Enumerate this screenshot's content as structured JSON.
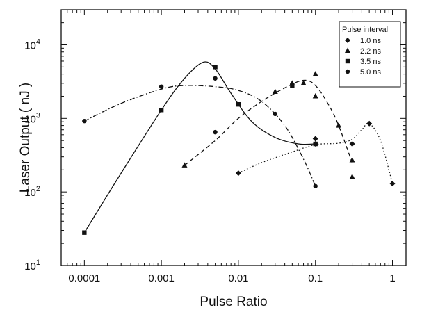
{
  "chart_data": {
    "type": "scatter",
    "title": "",
    "xlabel": "Pulse Ratio",
    "ylabel": "Laser Output ( nJ )",
    "xscale": "log",
    "yscale": "log",
    "xlim": [
      5e-05,
      1.5
    ],
    "ylim": [
      10,
      30000
    ],
    "x_ticks": [
      0.0001,
      0.001,
      0.01,
      0.1,
      1
    ],
    "x_tick_labels": [
      "0.0001",
      "0.001",
      "0.01",
      "0.1",
      "1"
    ],
    "y_ticks": [
      10,
      100,
      1000,
      10000
    ],
    "y_tick_labels": [
      {
        "base": "10",
        "exp": "1"
      },
      {
        "base": "10",
        "exp": "2"
      },
      {
        "base": "10",
        "exp": "3"
      },
      {
        "base": "10",
        "exp": "4"
      }
    ],
    "grid": false,
    "legend": {
      "title": "Pulse interval",
      "placement": "top-right"
    },
    "series": [
      {
        "name": "1.0 ns",
        "marker": "diamond",
        "line": "dotted",
        "points": [
          {
            "x": 0.01,
            "y": 180
          },
          {
            "x": 0.1,
            "y": 530
          },
          {
            "x": 0.1,
            "y": 450
          },
          {
            "x": 0.3,
            "y": 450
          },
          {
            "x": 0.5,
            "y": 850
          },
          {
            "x": 1.0,
            "y": 130
          }
        ],
        "curve": [
          {
            "x": 0.01,
            "y": 180
          },
          {
            "x": 0.02,
            "y": 250
          },
          {
            "x": 0.05,
            "y": 350
          },
          {
            "x": 0.1,
            "y": 440
          },
          {
            "x": 0.2,
            "y": 460
          },
          {
            "x": 0.3,
            "y": 520
          },
          {
            "x": 0.4,
            "y": 700
          },
          {
            "x": 0.5,
            "y": 850
          },
          {
            "x": 0.7,
            "y": 500
          },
          {
            "x": 1.0,
            "y": 130
          }
        ]
      },
      {
        "name": "2.2 ns",
        "marker": "triangle",
        "line": "dashed",
        "points": [
          {
            "x": 0.002,
            "y": 230
          },
          {
            "x": 0.03,
            "y": 2300
          },
          {
            "x": 0.05,
            "y": 3000
          },
          {
            "x": 0.07,
            "y": 3000
          },
          {
            "x": 0.1,
            "y": 4000
          },
          {
            "x": 0.1,
            "y": 2000
          },
          {
            "x": 0.2,
            "y": 800
          },
          {
            "x": 0.3,
            "y": 270
          },
          {
            "x": 0.3,
            "y": 160
          }
        ],
        "curve": [
          {
            "x": 0.002,
            "y": 230
          },
          {
            "x": 0.005,
            "y": 500
          },
          {
            "x": 0.01,
            "y": 1000
          },
          {
            "x": 0.02,
            "y": 1700
          },
          {
            "x": 0.04,
            "y": 2600
          },
          {
            "x": 0.07,
            "y": 3300
          },
          {
            "x": 0.1,
            "y": 2800
          },
          {
            "x": 0.15,
            "y": 1500
          },
          {
            "x": 0.2,
            "y": 800
          },
          {
            "x": 0.3,
            "y": 250
          }
        ]
      },
      {
        "name": "3.5 ns",
        "marker": "square",
        "line": "solid",
        "points": [
          {
            "x": 0.0001,
            "y": 28
          },
          {
            "x": 0.001,
            "y": 1300
          },
          {
            "x": 0.005,
            "y": 5000
          },
          {
            "x": 0.01,
            "y": 1550
          },
          {
            "x": 0.05,
            "y": 2800
          },
          {
            "x": 0.1,
            "y": 450
          }
        ],
        "curve": [
          {
            "x": 0.0001,
            "y": 28
          },
          {
            "x": 0.0003,
            "y": 180
          },
          {
            "x": 0.001,
            "y": 1300
          },
          {
            "x": 0.002,
            "y": 3500
          },
          {
            "x": 0.0035,
            "y": 5800
          },
          {
            "x": 0.005,
            "y": 4700
          },
          {
            "x": 0.008,
            "y": 2200
          },
          {
            "x": 0.015,
            "y": 900
          },
          {
            "x": 0.03,
            "y": 550
          },
          {
            "x": 0.06,
            "y": 450
          },
          {
            "x": 0.1,
            "y": 450
          }
        ]
      },
      {
        "name": "5.0 ns",
        "marker": "circle",
        "line": "dashdot",
        "points": [
          {
            "x": 0.0001,
            "y": 920
          },
          {
            "x": 0.001,
            "y": 2700
          },
          {
            "x": 0.005,
            "y": 3500
          },
          {
            "x": 0.005,
            "y": 650
          },
          {
            "x": 0.03,
            "y": 1150
          },
          {
            "x": 0.1,
            "y": 120
          }
        ],
        "curve": [
          {
            "x": 0.0001,
            "y": 920
          },
          {
            "x": 0.0003,
            "y": 1600
          },
          {
            "x": 0.001,
            "y": 2500
          },
          {
            "x": 0.002,
            "y": 2800
          },
          {
            "x": 0.005,
            "y": 2700
          },
          {
            "x": 0.01,
            "y": 2400
          },
          {
            "x": 0.02,
            "y": 1700
          },
          {
            "x": 0.04,
            "y": 800
          },
          {
            "x": 0.07,
            "y": 280
          },
          {
            "x": 0.1,
            "y": 120
          }
        ]
      }
    ]
  }
}
